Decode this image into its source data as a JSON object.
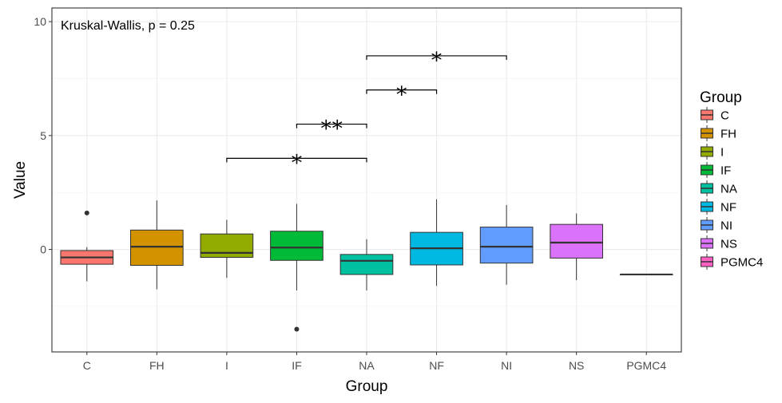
{
  "chart_data": {
    "type": "boxplot",
    "title": "",
    "xlabel": "Group",
    "ylabel": "Value",
    "ylim": [
      -4.5,
      10.6
    ],
    "yticks": [
      0,
      5,
      10
    ],
    "grid": true,
    "legend_position": "right",
    "legend_title": "Group",
    "annotation": "Kruskal-Wallis, p = 0.25",
    "categories": [
      "C",
      "FH",
      "I",
      "IF",
      "NA",
      "NF",
      "NI",
      "NS",
      "PGMC4"
    ],
    "colors": [
      "#F8766D",
      "#D39200",
      "#93AA00",
      "#00BA38",
      "#00C19F",
      "#00B9E3",
      "#619CFF",
      "#DB72FB",
      "#FF61C3"
    ],
    "boxes": [
      {
        "group": "C",
        "min": -1.4,
        "q1": -0.65,
        "median": -0.35,
        "q3": -0.05,
        "max": 0.1,
        "outliers": [
          1.6
        ]
      },
      {
        "group": "FH",
        "min": -1.75,
        "q1": -0.7,
        "median": 0.12,
        "q3": 0.85,
        "max": 2.15,
        "outliers": []
      },
      {
        "group": "I",
        "min": -1.25,
        "q1": -0.35,
        "median": -0.15,
        "q3": 0.68,
        "max": 1.3,
        "outliers": []
      },
      {
        "group": "IF",
        "min": -1.8,
        "q1": -0.48,
        "median": 0.08,
        "q3": 0.8,
        "max": 2.0,
        "outliers": [
          -3.5
        ]
      },
      {
        "group": "NA",
        "min": -1.8,
        "q1": -1.1,
        "median": -0.5,
        "q3": -0.22,
        "max": 0.45,
        "outliers": []
      },
      {
        "group": "NF",
        "min": -1.6,
        "q1": -0.68,
        "median": 0.05,
        "q3": 0.75,
        "max": 2.2,
        "outliers": []
      },
      {
        "group": "NI",
        "min": -1.55,
        "q1": -0.6,
        "median": 0.12,
        "q3": 0.98,
        "max": 1.95,
        "outliers": []
      },
      {
        "group": "NS",
        "min": -1.35,
        "q1": -0.38,
        "median": 0.3,
        "q3": 1.1,
        "max": 1.58,
        "outliers": []
      },
      {
        "group": "PGMC4",
        "min": -1.1,
        "q1": -1.1,
        "median": -1.1,
        "q3": -1.1,
        "max": -1.1,
        "outliers": []
      }
    ],
    "comparisons": [
      {
        "from": "I",
        "to": "NA",
        "y": 4.0,
        "label": "*"
      },
      {
        "from": "IF",
        "to": "NA",
        "y": 5.5,
        "label": "**"
      },
      {
        "from": "NA",
        "to": "NF",
        "y": 7.0,
        "label": "*"
      },
      {
        "from": "NA",
        "to": "NI",
        "y": 8.5,
        "label": "*"
      }
    ]
  }
}
